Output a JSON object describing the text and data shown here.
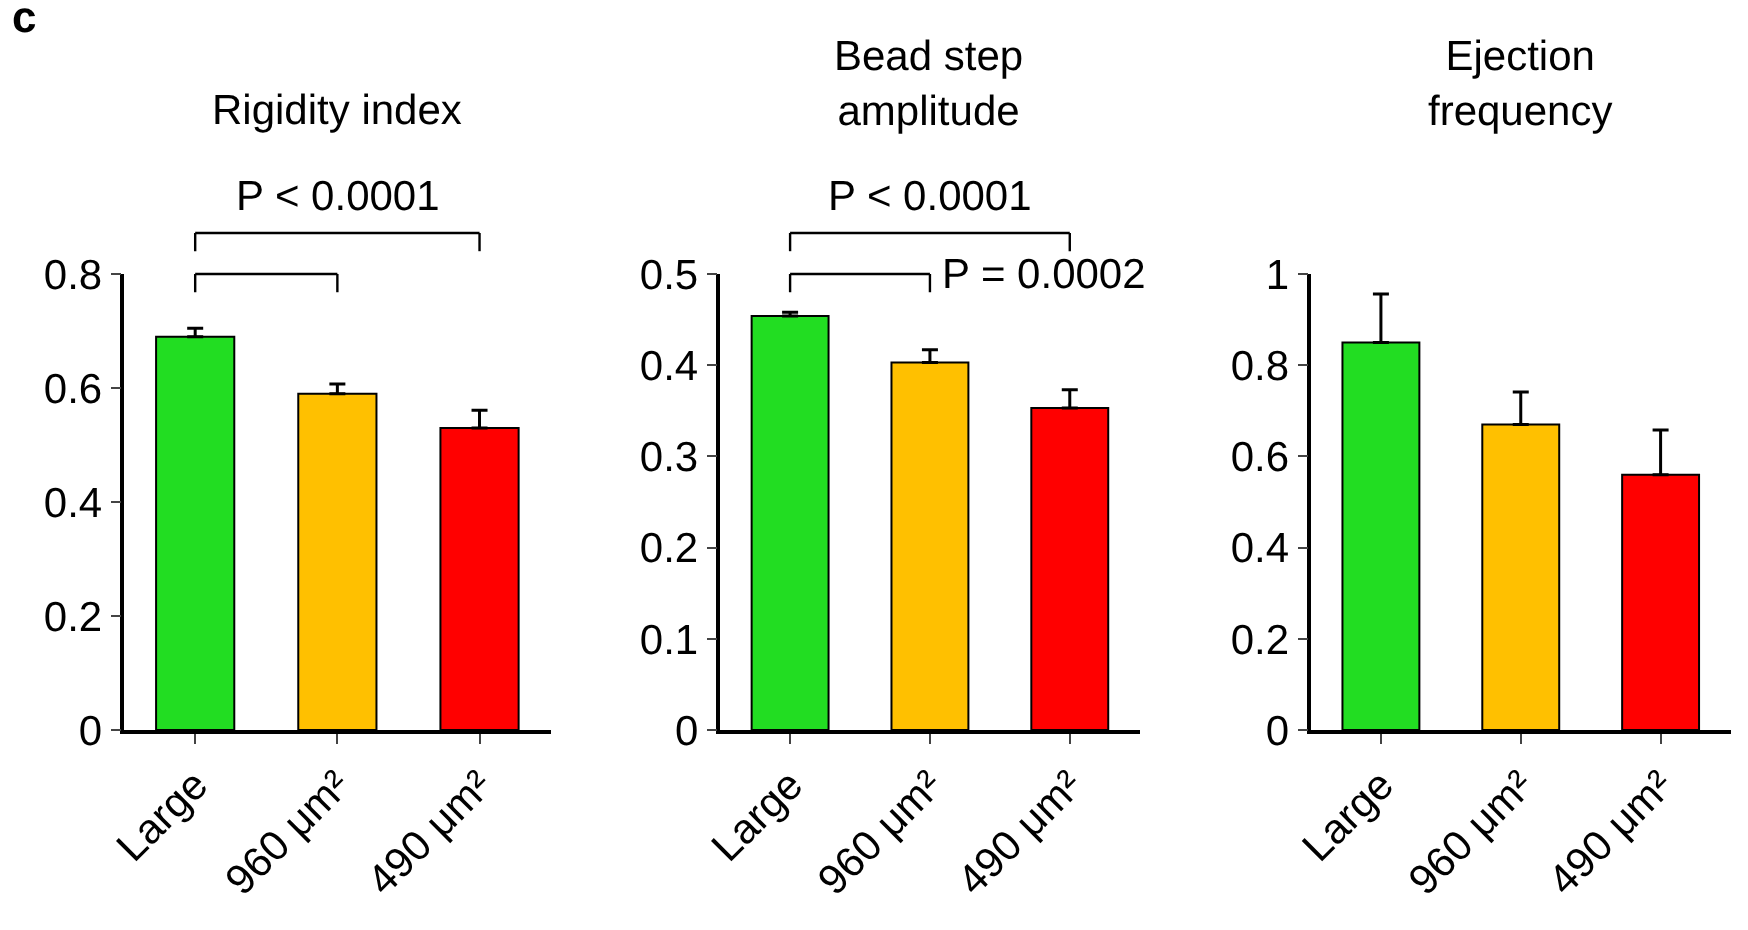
{
  "chart_data": [
    {
      "type": "bar",
      "title": "Rigidity index",
      "categories": [
        "Large",
        "960 μm²",
        "490 μm²"
      ],
      "values": [
        0.69,
        0.59,
        0.53
      ],
      "colors": [
        "#22dd22",
        "#ffc000",
        "#ff0000"
      ],
      "errors": [
        [
          0.69,
          0.705
        ],
        [
          0.59,
          0.607
        ],
        [
          0.53,
          0.561
        ]
      ],
      "ylim": [
        0,
        0.8
      ],
      "yticks": [
        0,
        0.2,
        0.4,
        0.6,
        0.8
      ],
      "annotations": [
        "c",
        "P < 0.0001"
      ]
    },
    {
      "type": "bar",
      "title": "Bead step\namplitude",
      "categories": [
        "Large",
        "960 μm²",
        "490 μm²"
      ],
      "values": [
        0.454,
        0.403,
        0.353
      ],
      "colors": [
        "#22dd22",
        "#ffc000",
        "#ff0000"
      ],
      "errors": [
        [
          0.454,
          0.458
        ],
        [
          0.403,
          0.417
        ],
        [
          0.353,
          0.373
        ]
      ],
      "ylim": [
        0,
        0.5
      ],
      "yticks": [
        0,
        0.1,
        0.2,
        0.3,
        0.4,
        0.5
      ],
      "annotations": [
        "P < 0.0001",
        "P = 0.0002"
      ]
    },
    {
      "type": "bar",
      "title": "Ejection\nfrequency",
      "categories": [
        "Large",
        "960 μm²",
        "490 μm²"
      ],
      "values": [
        0.85,
        0.67,
        0.56
      ],
      "colors": [
        "#22dd22",
        "#ffc000",
        "#ff0000"
      ],
      "errors": [
        [
          0.85,
          0.956
        ],
        [
          0.67,
          0.741
        ],
        [
          0.56,
          0.658
        ]
      ],
      "ylim": [
        0,
        1
      ],
      "yticks": [
        0,
        0.2,
        0.4,
        0.6,
        0.8,
        1
      ]
    }
  ]
}
